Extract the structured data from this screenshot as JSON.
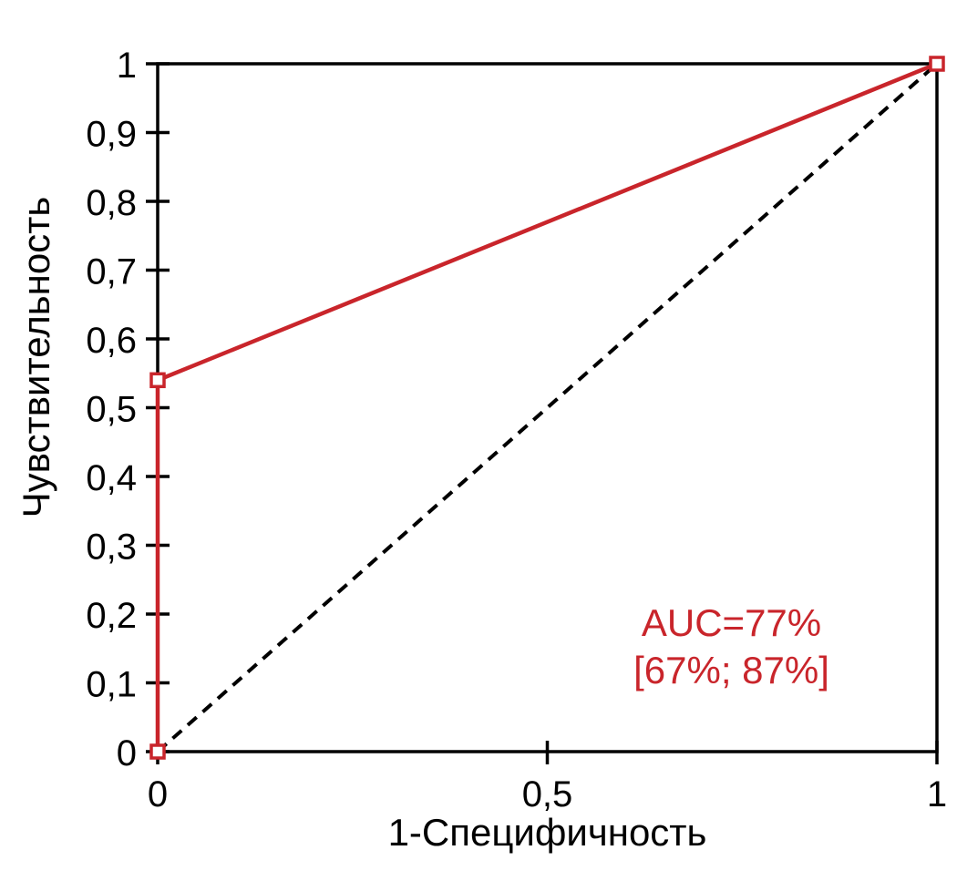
{
  "chart_data": {
    "type": "line",
    "title": "",
    "xlabel": "1-Специфичность",
    "ylabel": "Чувствительность",
    "xlim": [
      0,
      1
    ],
    "ylim": [
      0,
      1
    ],
    "grid": false,
    "legend": "none",
    "x_ticks": [
      {
        "v": 0,
        "label": "0"
      },
      {
        "v": 0.5,
        "label": "0,5"
      },
      {
        "v": 1,
        "label": "1"
      }
    ],
    "y_ticks": [
      {
        "v": 0,
        "label": "0"
      },
      {
        "v": 0.1,
        "label": "0,1"
      },
      {
        "v": 0.2,
        "label": "0,2"
      },
      {
        "v": 0.3,
        "label": "0,3"
      },
      {
        "v": 0.4,
        "label": "0,4"
      },
      {
        "v": 0.5,
        "label": "0,5"
      },
      {
        "v": 0.6,
        "label": "0,6"
      },
      {
        "v": 0.7,
        "label": "0,7"
      },
      {
        "v": 0.8,
        "label": "0,8"
      },
      {
        "v": 0.9,
        "label": "0,9"
      },
      {
        "v": 1,
        "label": "1"
      }
    ],
    "series": [
      {
        "name": "reference-diagonal",
        "points": [
          [
            0,
            0
          ],
          [
            1,
            1
          ]
        ],
        "color": "#000000",
        "style": "dashed",
        "marker": "none"
      },
      {
        "name": "roc-curve",
        "points": [
          [
            0,
            0
          ],
          [
            0,
            0.54
          ],
          [
            1,
            1
          ]
        ],
        "color": "#C9252B",
        "style": "solid",
        "marker": "open-square"
      }
    ],
    "annotation": {
      "line1": "AUC=77%",
      "line2": "[67%; 87%]",
      "color": "#C9252B"
    },
    "colors": {
      "axis": "#000000",
      "tick_label": "#000000",
      "background": "#ffffff"
    }
  }
}
